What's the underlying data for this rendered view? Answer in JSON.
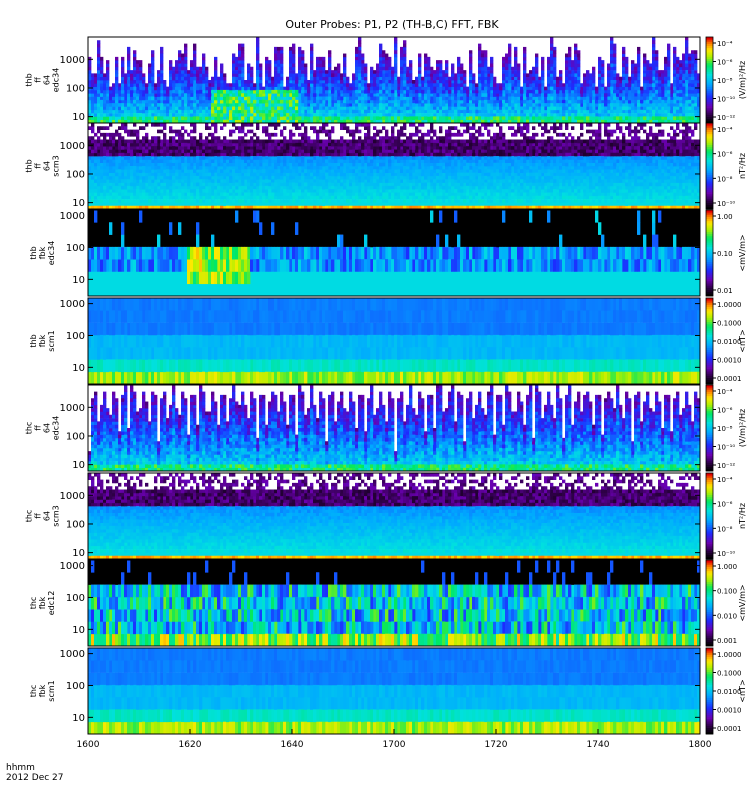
{
  "title": "Outer Probes: P1, P2 (TH-B,C) FFT, FBK",
  "time_axis": {
    "label_line1": "hhmm",
    "label_line2": "2012 Dec 27",
    "ticks": [
      "1600",
      "1620",
      "1640",
      "1700",
      "1720",
      "1740",
      "1800"
    ]
  },
  "chart_data": [
    {
      "type": "heatmap",
      "kind": "fft_e",
      "ylabel": [
        "thb",
        "ff",
        "64",
        "edc34"
      ],
      "yticks": [
        "10",
        "100",
        "1000"
      ],
      "ylim": [
        6,
        6000
      ],
      "colorbar": {
        "scheme": "rainbow",
        "title": "(V/m)²/Hz",
        "ticks": [
          "10⁻¹²",
          "10⁻¹⁰",
          "10⁻⁸",
          "10⁻⁶",
          "10⁻⁴"
        ]
      }
    },
    {
      "type": "heatmap",
      "kind": "fft_b",
      "ylabel": [
        "thb",
        "ff",
        "64",
        "scm3"
      ],
      "yticks": [
        "10",
        "100",
        "1000"
      ],
      "ylim": [
        6,
        6000
      ],
      "colorbar": {
        "scheme": "rainbow",
        "title": "nT²/Hz",
        "ticks": [
          "10⁻¹⁰",
          "10⁻⁸",
          "10⁻⁶",
          "10⁻⁴"
        ]
      }
    },
    {
      "type": "heatmap",
      "kind": "fbk_e",
      "ylabel": [
        "thb",
        "fbk",
        "edc34"
      ],
      "yticks": [
        "10",
        "100",
        "1000"
      ],
      "ylim": [
        3,
        1500
      ],
      "colorbar": {
        "scheme": "rainbow",
        "title": "<mV/m>",
        "ticks": [
          "0.01",
          "0.10",
          "1.00"
        ]
      }
    },
    {
      "type": "heatmap",
      "kind": "fbk_b",
      "ylabel": [
        "thb",
        "fbk",
        "scm1"
      ],
      "yticks": [
        "10",
        "100",
        "1000"
      ],
      "ylim": [
        3,
        1500
      ],
      "colorbar": {
        "scheme": "rainbow",
        "title": "<nT>",
        "ticks": [
          "0.0001",
          "0.0010",
          "0.0100",
          "0.1000",
          "1.0000"
        ]
      }
    },
    {
      "type": "heatmap",
      "kind": "fft_e_periodic",
      "ylabel": [
        "thc",
        "ff",
        "64",
        "edc34"
      ],
      "yticks": [
        "10",
        "100",
        "1000"
      ],
      "ylim": [
        6,
        6000
      ],
      "colorbar": {
        "scheme": "rainbow",
        "title": "(V/m)²/Hz",
        "ticks": [
          "10⁻¹²",
          "10⁻¹⁰",
          "10⁻⁸",
          "10⁻⁶",
          "10⁻⁴"
        ]
      }
    },
    {
      "type": "heatmap",
      "kind": "fft_b",
      "ylabel": [
        "thc",
        "ff",
        "64",
        "scm3"
      ],
      "yticks": [
        "10",
        "100",
        "1000"
      ],
      "ylim": [
        6,
        6000
      ],
      "colorbar": {
        "scheme": "rainbow",
        "title": "nT²/Hz",
        "ticks": [
          "10⁻¹⁰",
          "10⁻⁸",
          "10⁻⁶",
          "10⁻⁴"
        ]
      }
    },
    {
      "type": "heatmap",
      "kind": "fbk_e2",
      "ylabel": [
        "thc",
        "fbk",
        "edc12"
      ],
      "yticks": [
        "10",
        "100",
        "1000"
      ],
      "ylim": [
        3,
        1500
      ],
      "colorbar": {
        "scheme": "rainbow",
        "title": "<mV/m>",
        "ticks": [
          "0.001",
          "0.010",
          "0.100",
          "1.000"
        ]
      }
    },
    {
      "type": "heatmap",
      "kind": "fbk_b",
      "ylabel": [
        "thc",
        "fbk",
        "scm1"
      ],
      "yticks": [
        "10",
        "100",
        "1000"
      ],
      "ylim": [
        3,
        1500
      ],
      "colorbar": {
        "scheme": "rainbow",
        "title": "<nT>",
        "ticks": [
          "0.0001",
          "0.0010",
          "0.0100",
          "0.1000",
          "1.0000"
        ]
      }
    }
  ]
}
